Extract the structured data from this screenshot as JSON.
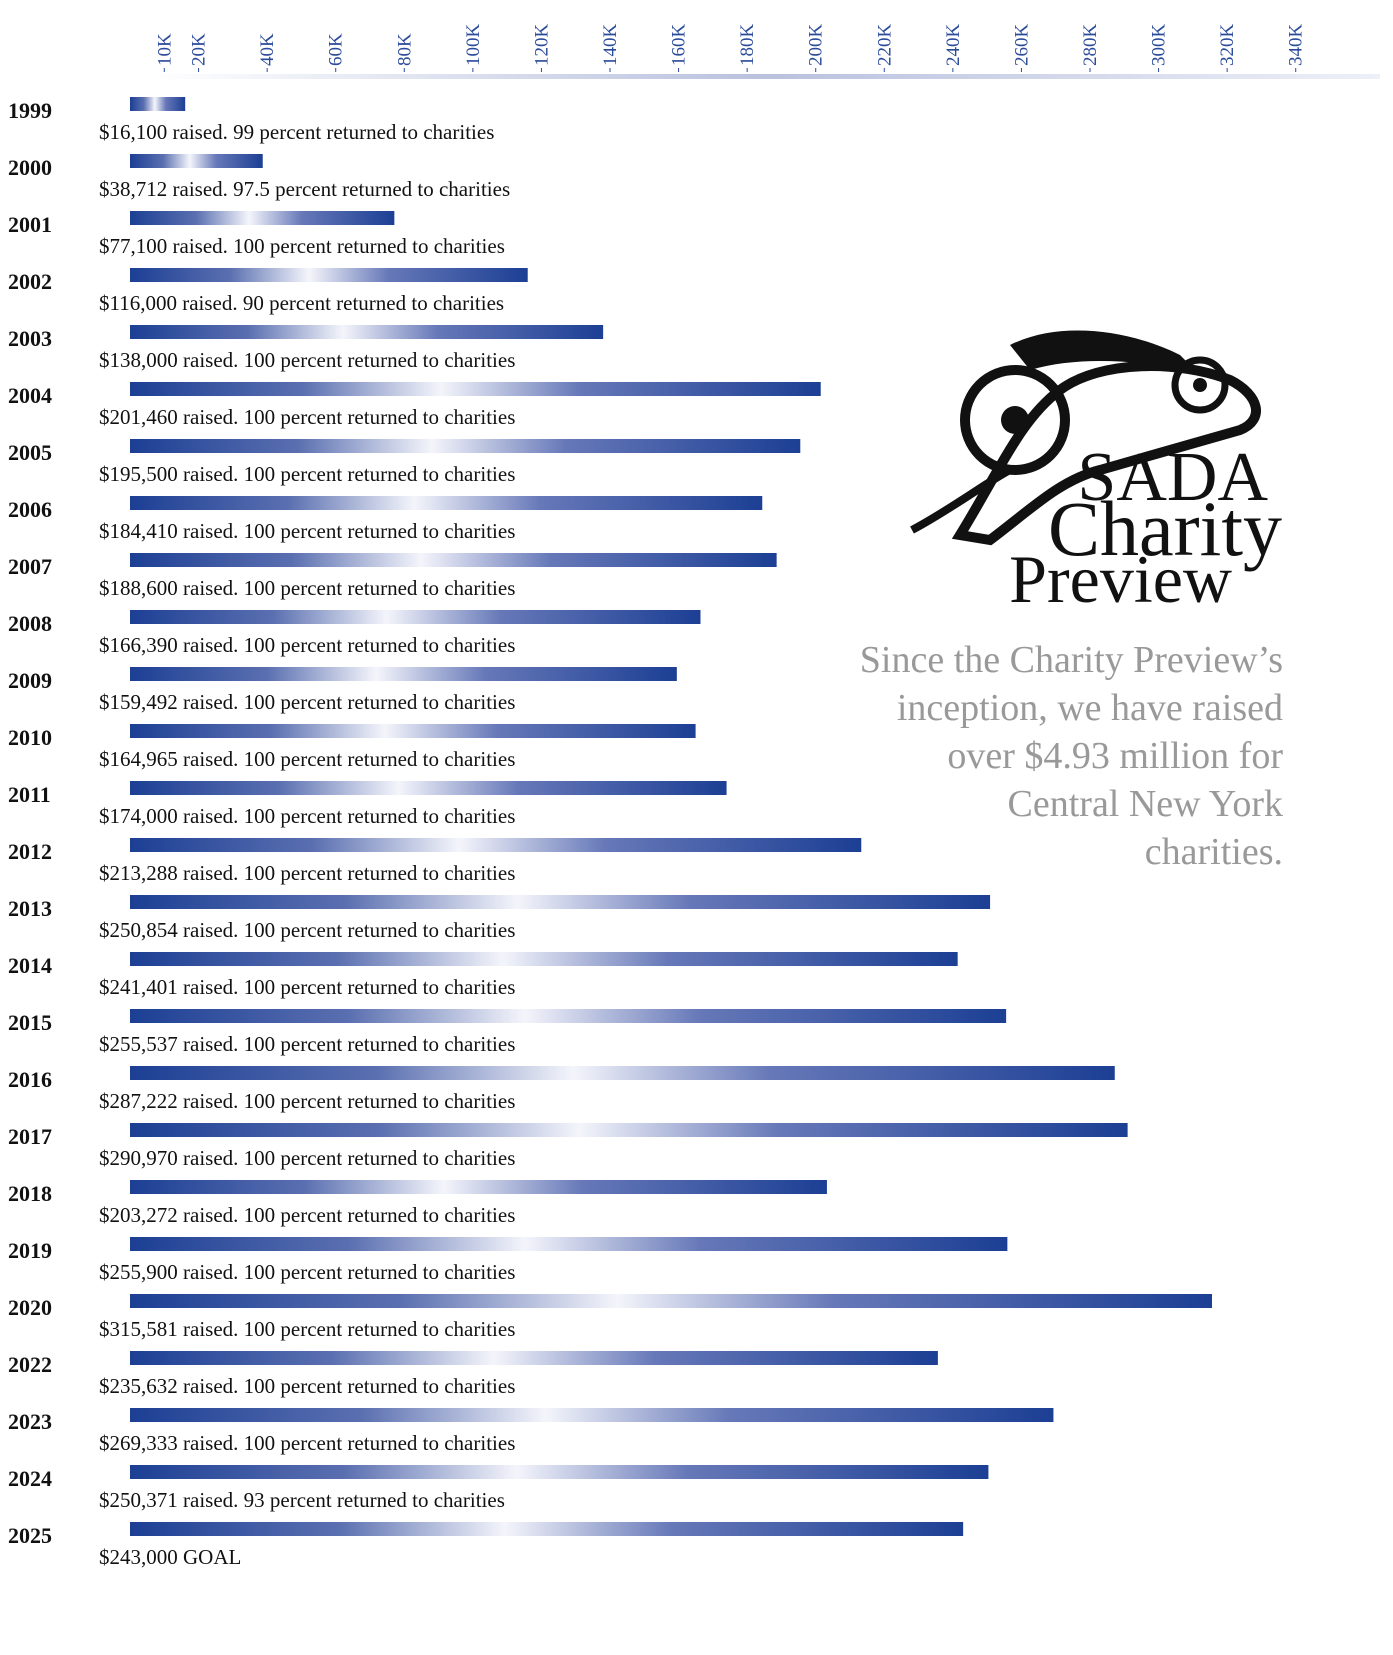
{
  "chart_data": {
    "type": "bar",
    "orientation": "horizontal",
    "categories": [
      "1999",
      "2000",
      "2001",
      "2002",
      "2003",
      "2004",
      "2005",
      "2006",
      "2007",
      "2008",
      "2009",
      "2010",
      "2011",
      "2012",
      "2013",
      "2014",
      "2015",
      "2016",
      "2017",
      "2018",
      "2019",
      "2020",
      "2022",
      "2023",
      "2024",
      "2025"
    ],
    "values": [
      16100,
      38712,
      77100,
      116000,
      138000,
      201460,
      195500,
      184410,
      188600,
      166390,
      159492,
      164965,
      174000,
      213288,
      250854,
      241401,
      255537,
      287222,
      290970,
      203272,
      255900,
      315581,
      235632,
      269333,
      250371,
      243000
    ],
    "value_labels": [
      "$16,100 raised. 99 percent returned to charities",
      "$38,712 raised. 97.5 percent returned to charities",
      "$77,100 raised. 100 percent returned to charities",
      "$116,000 raised. 90 percent returned to charities",
      "$138,000 raised. 100 percent returned to charities",
      "$201,460 raised. 100 percent returned to charities",
      "$195,500 raised. 100 percent returned to charities",
      "$184,410 raised. 100 percent returned to charities",
      "$188,600 raised. 100 percent returned to charities",
      "$166,390 raised. 100 percent returned to charities",
      "$159,492 raised. 100 percent returned to charities",
      "$164,965 raised. 100 percent returned to charities",
      "$174,000 raised. 100 percent returned to charities",
      "$213,288 raised. 100 percent returned to charities",
      "$250,854 raised. 100 percent returned to charities",
      "$241,401 raised. 100 percent returned to charities",
      "$255,537 raised. 100 percent returned to charities",
      "$287,222 raised. 100 percent returned to charities",
      "$290,970 raised. 100 percent returned to charities",
      "$203,272 raised. 100 percent returned to charities",
      "$255,900 raised. 100 percent returned to charities",
      "$315,581 raised. 100 percent returned to charities",
      "$235,632 raised. 100 percent returned to charities",
      "$269,333 raised. 100 percent returned to charities",
      "$250,371 raised. 93 percent returned to charities",
      "$243,000 GOAL"
    ],
    "color": "#1c3f94",
    "xlim": [
      0,
      350000
    ],
    "xticks": [
      {
        "value": 10000,
        "label": "10K"
      },
      {
        "value": 20000,
        "label": "20K"
      },
      {
        "value": 40000,
        "label": "40K"
      },
      {
        "value": 60000,
        "label": "60K"
      },
      {
        "value": 80000,
        "label": "80K"
      },
      {
        "value": 100000,
        "label": "100K"
      },
      {
        "value": 120000,
        "label": "120K"
      },
      {
        "value": 140000,
        "label": "140K"
      },
      {
        "value": 160000,
        "label": "160K"
      },
      {
        "value": 180000,
        "label": "180K"
      },
      {
        "value": 200000,
        "label": "200K"
      },
      {
        "value": 220000,
        "label": "220K"
      },
      {
        "value": 240000,
        "label": "240K"
      },
      {
        "value": 260000,
        "label": "260K"
      },
      {
        "value": 280000,
        "label": "280K"
      },
      {
        "value": 300000,
        "label": "300K"
      },
      {
        "value": 320000,
        "label": "320K"
      },
      {
        "value": 340000,
        "label": "340K"
      }
    ]
  },
  "logo": {
    "line1": "SADA",
    "line2": "Charity",
    "line3": "Preview"
  },
  "caption": [
    "Since the Charity Preview’s",
    "inception, we have raised",
    "over $4.93 million for",
    "Central New York",
    "charities."
  ]
}
